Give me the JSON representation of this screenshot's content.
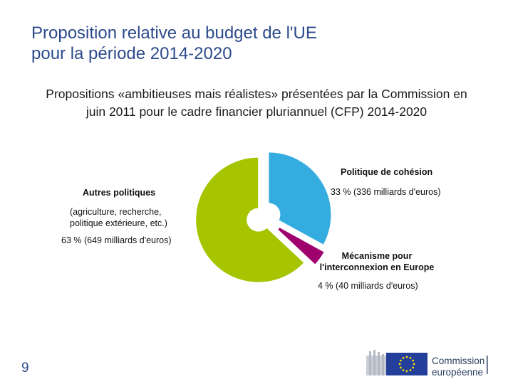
{
  "slide": {
    "title_line1": "Proposition relative au budget de l'UE",
    "title_line2": "pour la période 2014-2020",
    "subtitle_line1": "Propositions «ambitieuses mais réalistes» présentées par la Commission en",
    "subtitle_line2": "juin 2011 pour le cadre financier pluriannuel (CFP) 2014-2020",
    "page_number": "9"
  },
  "logo": {
    "line1": "Commission",
    "line2": "européenne",
    "icon": "eu-flag-icon"
  },
  "colors": {
    "title": "#2c4a8c",
    "cohesion": "#35ace0",
    "mecanisme": "#a0006e",
    "autres": "#a6c400"
  },
  "chart_data": {
    "type": "pie",
    "title": "",
    "slices": [
      {
        "name": "Politique de cohésion",
        "value": 33,
        "amount": "336 milliards d'euros",
        "label_title": "Politique de cohésion",
        "label_value": "33 % (336 milliards d'euros)"
      },
      {
        "name": "Mécanisme pour l'interconnexion en Europe",
        "value": 4,
        "amount": "40 milliards d'euros",
        "label_title_1": "Mécanisme pour",
        "label_title_2": "l'interconnexion en Europe",
        "label_value": "4 % (40 milliards d'euros)"
      },
      {
        "name": "Autres politiques",
        "value": 63,
        "amount": "649 milliards d'euros",
        "label_title": "Autres politiques",
        "label_detail_1": "(agriculture, recherche,",
        "label_detail_2": "politique extérieure, etc.)",
        "label_value": "63 % (649 milliards d'euros)"
      }
    ]
  }
}
